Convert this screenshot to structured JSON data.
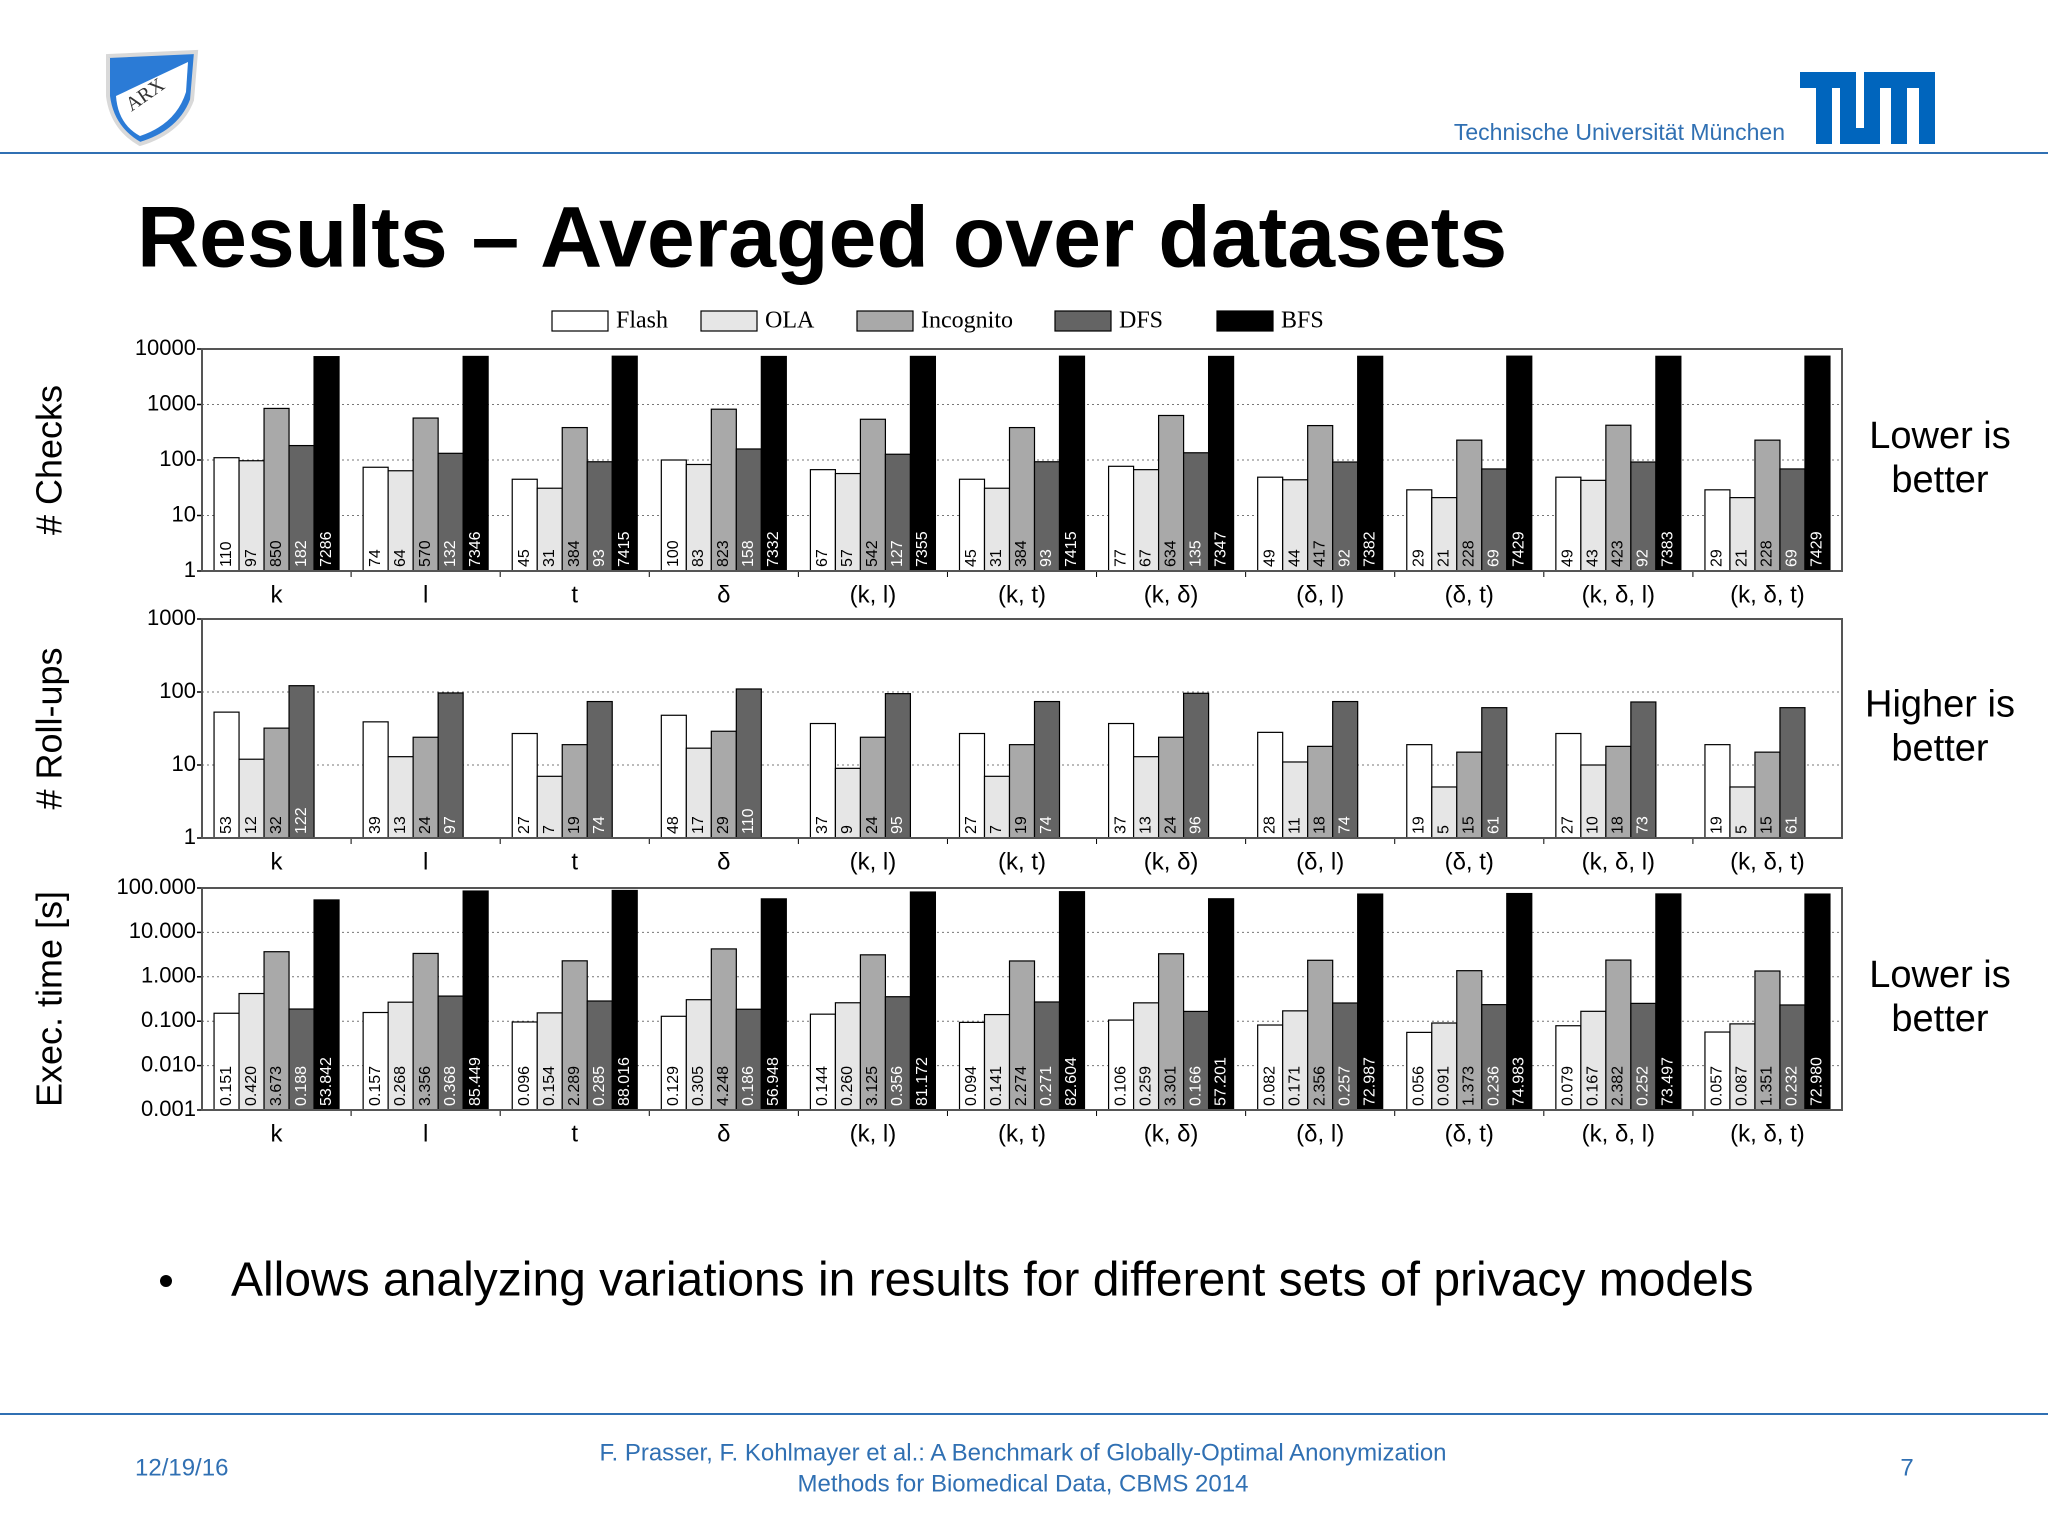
{
  "logo_text": "ARX",
  "institution": "Technische Universität München",
  "title": "Results – Averaged over datasets",
  "bullet": "Allows analyzing variations in results for different sets of privacy models",
  "footer": {
    "date": "12/19/16",
    "citation": [
      "F. Prasser, F. Kohlmayer et al.: A Benchmark of Globally-Optimal Anonymization",
      "Methods for Biomedical Data, CBMS 2014"
    ],
    "page": "7"
  },
  "chart_data": [
    {
      "type": "bar",
      "y_label": "# Checks",
      "annotation": [
        "Lower is",
        "better"
      ],
      "log_scale": true,
      "grid": true,
      "legend": "top",
      "categories": [
        "k",
        "l",
        "t",
        "δ",
        "(k, l)",
        "(k, t)",
        "(k, δ)",
        "(δ, l)",
        "(δ, t)",
        "(k, δ, l)",
        "(k, δ, t)"
      ],
      "ylim": [
        1,
        10000
      ],
      "yticks": [
        1,
        10,
        100,
        1000,
        10000
      ],
      "series": [
        {
          "name": "Flash",
          "color": "#ffffff",
          "values": [
            110,
            74,
            45,
            100,
            67,
            45,
            77,
            49,
            29,
            49,
            29
          ]
        },
        {
          "name": "OLA",
          "color": "#e6e6e6",
          "values": [
            97,
            64,
            31,
            83,
            57,
            31,
            67,
            44,
            21,
            43,
            21
          ]
        },
        {
          "name": "Incognito",
          "color": "#a9a9a9",
          "values": [
            850,
            570,
            384,
            823,
            542,
            384,
            634,
            417,
            228,
            423,
            228
          ]
        },
        {
          "name": "DFS",
          "color": "#646464",
          "values": [
            182,
            132,
            93,
            158,
            127,
            93,
            135,
            92,
            69,
            92,
            69
          ]
        },
        {
          "name": "BFS",
          "color": "#000000",
          "values": [
            7286,
            7346,
            7415,
            7332,
            7355,
            7415,
            7347,
            7382,
            7429,
            7383,
            7429
          ]
        }
      ]
    },
    {
      "type": "bar",
      "y_label": "# Roll-ups",
      "annotation": [
        "Higher is",
        "better"
      ],
      "log_scale": true,
      "grid": true,
      "categories": [
        "k",
        "l",
        "t",
        "δ",
        "(k, l)",
        "(k, t)",
        "(k, δ)",
        "(δ, l)",
        "(δ, t)",
        "(k, δ, l)",
        "(k, δ, t)"
      ],
      "ylim": [
        1,
        1000
      ],
      "yticks": [
        1,
        10,
        100,
        1000
      ],
      "series": [
        {
          "color": "#ffffff",
          "values": [
            53,
            39,
            27,
            48,
            37,
            27,
            37,
            28,
            19,
            27,
            19
          ]
        },
        {
          "color": "#e6e6e6",
          "values": [
            12,
            13,
            7,
            17,
            9,
            7,
            13,
            11,
            5,
            10,
            5
          ]
        },
        {
          "color": "#a9a9a9",
          "values": [
            32,
            24,
            19,
            29,
            24,
            19,
            24,
            18,
            15,
            18,
            15
          ]
        },
        {
          "color": "#646464",
          "values": [
            122,
            97,
            74,
            110,
            95,
            74,
            96,
            74,
            61,
            73,
            61
          ]
        },
        {
          "color": "#000000",
          "values": [
            1,
            1,
            1,
            1,
            1,
            1,
            1,
            1,
            1,
            1,
            1
          ]
        }
      ]
    },
    {
      "type": "bar",
      "y_label": "Exec. time [s]",
      "annotation": [
        "Lower is",
        "better"
      ],
      "log_scale": true,
      "grid": true,
      "categories": [
        "k",
        "l",
        "t",
        "δ",
        "(k, l)",
        "(k, t)",
        "(k, δ)",
        "(δ, l)",
        "(δ, t)",
        "(k, δ, l)",
        "(k, δ, t)"
      ],
      "ylim": [
        0.001,
        100
      ],
      "yticks": [
        0.001,
        {
          "value": 0.01,
          "label": "0.010"
        },
        {
          "value": 0.1,
          "label": "0.100"
        },
        {
          "value": 1,
          "label": "1.000"
        },
        {
          "value": 10,
          "label": "10.000"
        },
        {
          "value": 100,
          "label": "100.000"
        }
      ],
      "series": [
        {
          "color": "#ffffff",
          "values": [
            0.151,
            0.157,
            0.096,
            0.129,
            0.144,
            0.094,
            0.106,
            0.082,
            0.056,
            0.079,
            0.057
          ],
          "value_labels": [
            "0.151",
            "0.157",
            "0.096",
            "0.129",
            "0.144",
            "0.094",
            "0.106",
            "0.082",
            "0.056",
            "0.079",
            "0.057"
          ]
        },
        {
          "color": "#e6e6e6",
          "values": [
            0.42,
            0.268,
            0.154,
            0.305,
            0.26,
            0.141,
            0.259,
            0.171,
            0.091,
            0.167,
            0.087
          ],
          "value_labels": [
            "0.420",
            "0.268",
            "0.154",
            "0.305",
            "0.260",
            "0.141",
            "0.259",
            "0.171",
            "0.091",
            "0.167",
            "0.087"
          ]
        },
        {
          "color": "#a9a9a9",
          "values": [
            3.673,
            3.356,
            2.289,
            4.248,
            3.125,
            2.274,
            3.301,
            2.356,
            1.373,
            2.382,
            1.351
          ],
          "value_labels": [
            "3.673",
            "3.356",
            "2.289",
            "4.248",
            "3.125",
            "2.274",
            "3.301",
            "2.356",
            "1.373",
            "2.382",
            "1.351"
          ]
        },
        {
          "color": "#646464",
          "values": [
            0.188,
            0.368,
            0.285,
            0.186,
            0.356,
            0.271,
            0.166,
            0.257,
            0.236,
            0.252,
            0.232
          ],
          "value_labels": [
            "0.188",
            "0.368",
            "0.285",
            "0.186",
            "0.356",
            "0.271",
            "0.166",
            "0.257",
            "0.236",
            "0.252",
            "0.232"
          ]
        },
        {
          "color": "#000000",
          "values": [
            53.842,
            85.449,
            88.016,
            56.948,
            81.172,
            82.604,
            57.201,
            72.987,
            74.983,
            73.497,
            72.98
          ],
          "value_labels": [
            "53.842",
            "85.449",
            "88.016",
            "56.948",
            "81.172",
            "82.604",
            "57.201",
            "72.987",
            "74.983",
            "73.497",
            "72.980"
          ]
        }
      ]
    }
  ]
}
